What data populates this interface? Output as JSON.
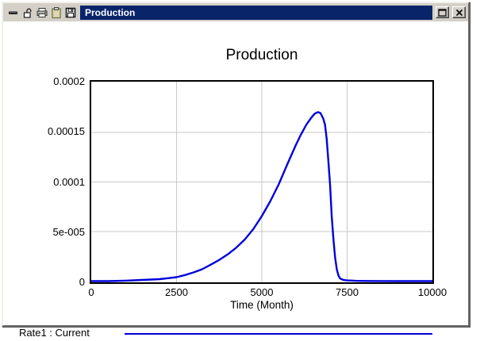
{
  "window": {
    "title": "Production",
    "toolbar_icons": [
      {
        "name": "shrink-bar-icon"
      },
      {
        "name": "lock-icon"
      },
      {
        "name": "print-icon"
      },
      {
        "name": "clipboard-icon"
      },
      {
        "name": "save-icon"
      }
    ],
    "caption_buttons": [
      {
        "name": "maximize-button",
        "icon": "maximize-icon"
      },
      {
        "name": "close-button",
        "icon": "close-icon"
      }
    ]
  },
  "chart_data": {
    "type": "line",
    "title": "Production",
    "xlabel": "Time (Month)",
    "ylabel": "",
    "xlim": [
      0,
      10000
    ],
    "ylim": [
      0,
      0.0002
    ],
    "grid": true,
    "grid_color": "#c9c9c9",
    "x_ticks": [
      0,
      2500,
      5000,
      7500,
      10000
    ],
    "x_tick_labels": [
      "0",
      "2500",
      "5000",
      "7500",
      "10000"
    ],
    "y_ticks": [
      0,
      5e-05,
      0.0001,
      0.00015,
      0.0002
    ],
    "y_tick_labels": [
      "0",
      "5e-005",
      "0.0001",
      "0.00015",
      "0.0002"
    ],
    "legend_position": "bottom-left",
    "series": [
      {
        "name": "Rate1 : Current",
        "color": "#0000DD",
        "x": [
          0,
          500,
          1000,
          1500,
          2000,
          2250,
          2500,
          2750,
          3000,
          3250,
          3500,
          3750,
          4000,
          4250,
          4500,
          4750,
          5000,
          5250,
          5500,
          5750,
          6000,
          6150,
          6300,
          6450,
          6550,
          6650,
          6720,
          6800,
          6850,
          6900,
          6950,
          7000,
          7050,
          7100,
          7150,
          7200,
          7250,
          7300,
          7400,
          7500,
          7750,
          8000,
          8500,
          9000,
          10000
        ],
        "y": [
          0,
          0,
          5e-07,
          1.2e-06,
          2e-06,
          3e-06,
          4e-06,
          6.2e-06,
          8.8e-06,
          1.2e-05,
          1.66e-05,
          2.14e-05,
          2.7e-05,
          3.38e-05,
          4.2e-05,
          5.25e-05,
          6.56e-05,
          8.08e-05,
          9.8e-05,
          0.000118,
          0.0001375,
          0.000148,
          0.0001575,
          0.000165,
          0.000169,
          0.0001705,
          0.0001695,
          0.000164,
          0.000158,
          0.000144,
          0.000122,
          9.75e-05,
          6.55e-05,
          4.2e-05,
          2.35e-05,
          1.15e-05,
          5.2e-06,
          2.5e-06,
          1.1e-06,
          7e-07,
          3e-07,
          2e-07,
          1e-07,
          0,
          0
        ]
      }
    ]
  }
}
